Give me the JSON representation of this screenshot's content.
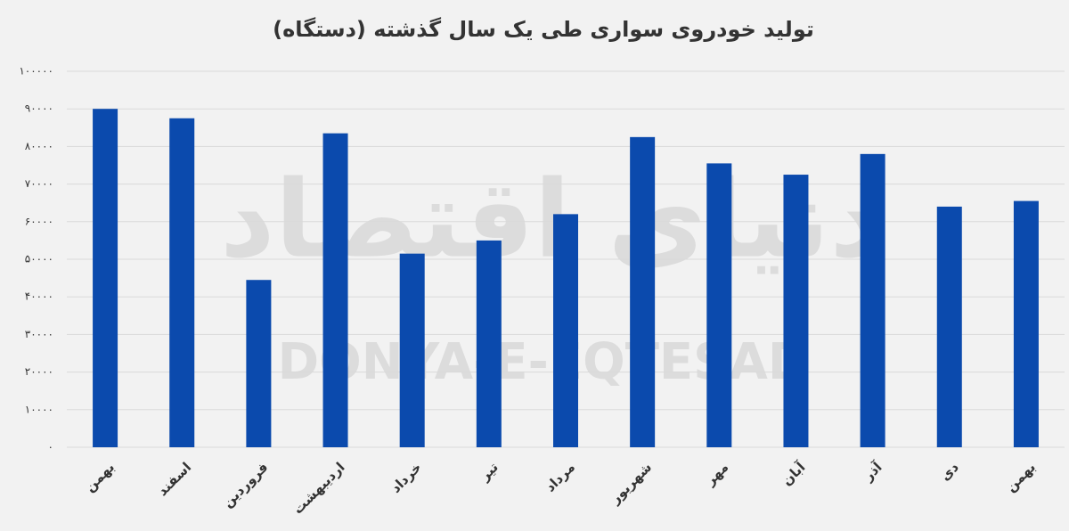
{
  "chart_data": {
    "type": "bar",
    "title": "تولید خودروی سواری طی یک سال گذشته (دستگاه)",
    "watermark": [
      "دنیای اقتصاد",
      "DONYA-E-EQTESAD"
    ],
    "categories": [
      "بهمن",
      "اسفند",
      "فروردین",
      "اردیبهشت",
      "خرداد",
      "تیر",
      "مرداد",
      "شهریور",
      "مهر",
      "آبان",
      "آذر",
      "دی",
      "بهمن"
    ],
    "values": [
      90000,
      87500,
      44500,
      83500,
      51500,
      55000,
      62000,
      82500,
      75500,
      72500,
      78000,
      64000,
      65500
    ],
    "color": "#0b4aad",
    "ylim": [
      0,
      100000
    ],
    "yticks": [
      {
        "value": 0,
        "label": "۰"
      },
      {
        "value": 10000,
        "label": "۱۰۰۰۰"
      },
      {
        "value": 20000,
        "label": "۲۰۰۰۰"
      },
      {
        "value": 30000,
        "label": "۳۰۰۰۰"
      },
      {
        "value": 40000,
        "label": "۴۰۰۰۰"
      },
      {
        "value": 50000,
        "label": "۵۰۰۰۰"
      },
      {
        "value": 60000,
        "label": "۶۰۰۰۰"
      },
      {
        "value": 70000,
        "label": "۷۰۰۰۰"
      },
      {
        "value": 80000,
        "label": "۸۰۰۰۰"
      },
      {
        "value": 90000,
        "label": "۹۰۰۰۰"
      },
      {
        "value": 100000,
        "label": "۱۰۰۰۰۰"
      }
    ],
    "grid": true
  }
}
